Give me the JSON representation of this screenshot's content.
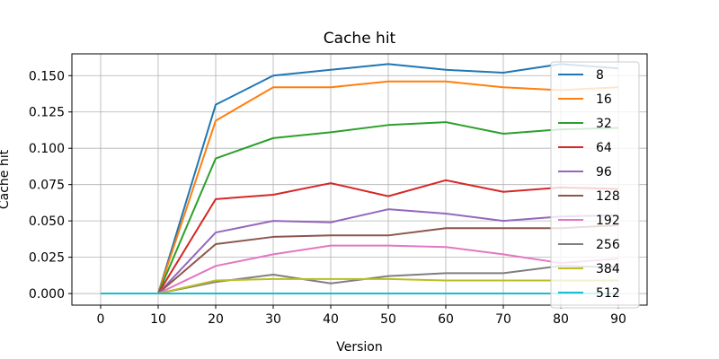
{
  "chart_data": {
    "type": "line",
    "title": "Cache hit",
    "xlabel": "Version",
    "ylabel": "Cache hit",
    "x": [
      0,
      10,
      20,
      30,
      40,
      50,
      60,
      70,
      80,
      90
    ],
    "xlim": [
      -5,
      95
    ],
    "ylim": [
      -0.008,
      0.165
    ],
    "xticks": [
      0,
      10,
      20,
      30,
      40,
      50,
      60,
      70,
      80,
      90
    ],
    "yticks": [
      0.0,
      0.025,
      0.05,
      0.075,
      0.1,
      0.125,
      0.15
    ],
    "ytick_labels": [
      "0.000",
      "0.025",
      "0.050",
      "0.075",
      "0.100",
      "0.125",
      "0.150"
    ],
    "grid": true,
    "legend_position": "right",
    "series": [
      {
        "name": "8",
        "color": "#1f77b4",
        "values": [
          0,
          0,
          0.13,
          0.15,
          0.154,
          0.158,
          0.154,
          0.152,
          0.158,
          0.155
        ]
      },
      {
        "name": "16",
        "color": "#ff7f0e",
        "values": [
          0,
          0,
          0.119,
          0.142,
          0.142,
          0.146,
          0.146,
          0.142,
          0.14,
          0.142
        ]
      },
      {
        "name": "32",
        "color": "#2ca02c",
        "values": [
          0,
          0,
          0.093,
          0.107,
          0.111,
          0.116,
          0.118,
          0.11,
          0.113,
          0.114
        ]
      },
      {
        "name": "64",
        "color": "#d62728",
        "values": [
          0,
          0,
          0.065,
          0.068,
          0.076,
          0.067,
          0.078,
          0.07,
          0.073,
          0.072
        ]
      },
      {
        "name": "96",
        "color": "#9467bd",
        "values": [
          0,
          0,
          0.042,
          0.05,
          0.049,
          0.058,
          0.055,
          0.05,
          0.053,
          0.054
        ]
      },
      {
        "name": "128",
        "color": "#8c564b",
        "values": [
          0,
          0,
          0.034,
          0.039,
          0.04,
          0.04,
          0.045,
          0.045,
          0.045,
          0.047
        ]
      },
      {
        "name": "192",
        "color": "#e377c2",
        "values": [
          0,
          0,
          0.019,
          0.027,
          0.033,
          0.033,
          0.032,
          0.027,
          0.021,
          0.024
        ]
      },
      {
        "name": "256",
        "color": "#7f7f7f",
        "values": [
          0,
          0,
          0.008,
          0.013,
          0.007,
          0.012,
          0.014,
          0.014,
          0.019,
          0.018
        ]
      },
      {
        "name": "384",
        "color": "#bcbd22",
        "values": [
          0,
          0,
          0.009,
          0.01,
          0.01,
          0.01,
          0.009,
          0.009,
          0.009,
          0.009
        ]
      },
      {
        "name": "512",
        "color": "#17becf",
        "values": [
          0,
          0,
          0,
          0,
          0,
          0,
          0,
          0,
          0,
          0
        ]
      }
    ]
  }
}
